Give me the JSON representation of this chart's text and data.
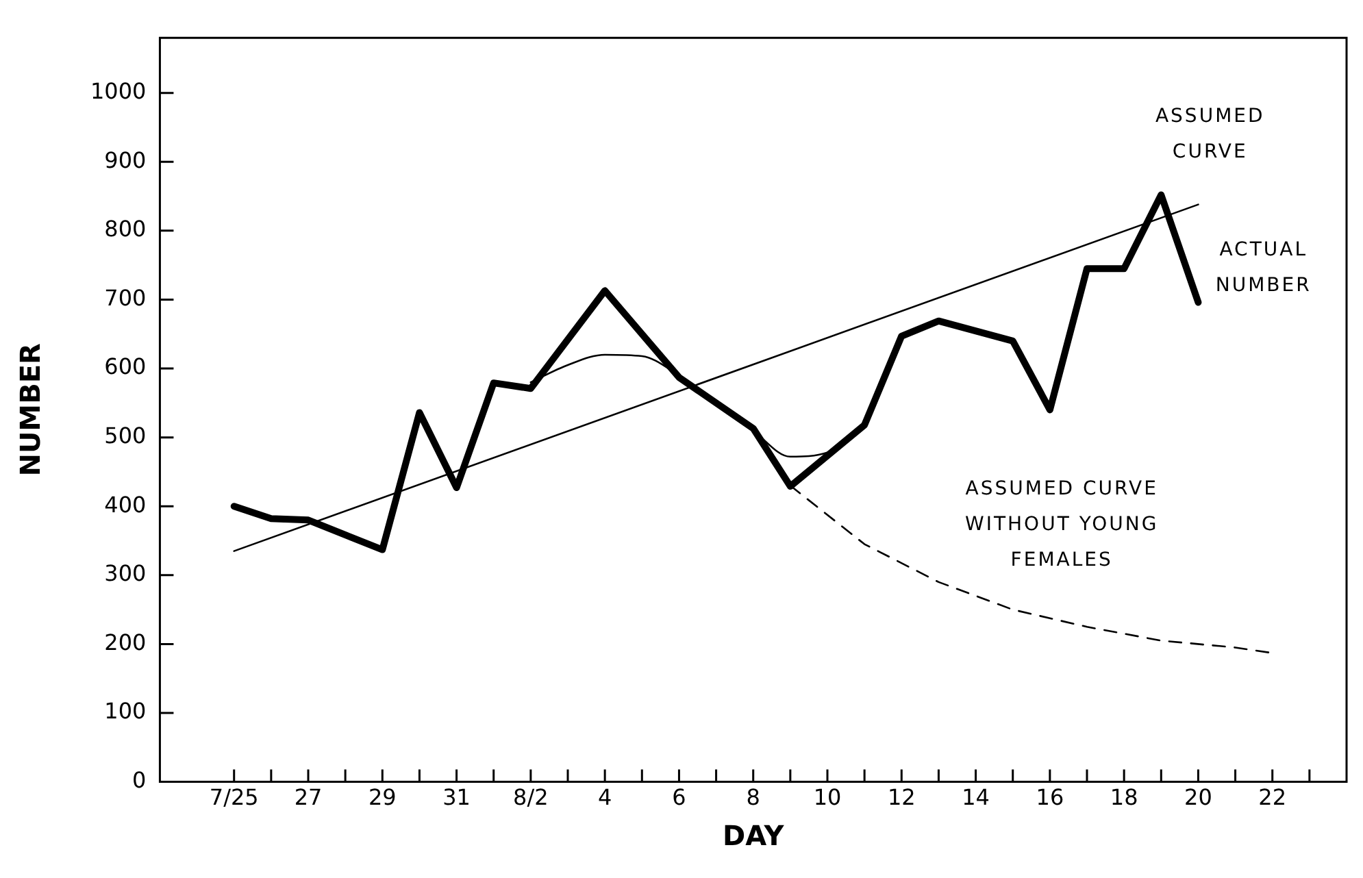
{
  "chart_data": {
    "type": "line",
    "xlabel": "DAY",
    "ylabel": "NUMBER",
    "xlim": [
      "--07-23",
      "--08-24"
    ],
    "ylim": [
      0,
      1080
    ],
    "xticks": [
      {
        "value": "--07-25",
        "label": "7/25"
      },
      {
        "value": "--07-26",
        "label": null
      },
      {
        "value": "--07-27",
        "label": "27"
      },
      {
        "value": "--07-28",
        "label": null
      },
      {
        "value": "--07-29",
        "label": "29"
      },
      {
        "value": "--07-30",
        "label": null
      },
      {
        "value": "--07-31",
        "label": "31"
      },
      {
        "value": "--08-01",
        "label": null
      },
      {
        "value": "--08-02",
        "label": "8/2"
      },
      {
        "value": "--08-03",
        "label": null
      },
      {
        "value": "--08-04",
        "label": "4"
      },
      {
        "value": "--08-05",
        "label": null
      },
      {
        "value": "--08-06",
        "label": "6"
      },
      {
        "value": "--08-07",
        "label": null
      },
      {
        "value": "--08-08",
        "label": "8"
      },
      {
        "value": "--08-09",
        "label": null
      },
      {
        "value": "--08-10",
        "label": "10"
      },
      {
        "value": "--08-11",
        "label": null
      },
      {
        "value": "--08-12",
        "label": "12"
      },
      {
        "value": "--08-13",
        "label": null
      },
      {
        "value": "--08-14",
        "label": "14"
      },
      {
        "value": "--08-15",
        "label": null
      },
      {
        "value": "--08-16",
        "label": "16"
      },
      {
        "value": "--08-17",
        "label": null
      },
      {
        "value": "--08-18",
        "label": "18"
      },
      {
        "value": "--08-19",
        "label": null
      },
      {
        "value": "--08-20",
        "label": "20"
      },
      {
        "value": "--08-21",
        "label": null
      },
      {
        "value": "--08-22",
        "label": "22"
      },
      {
        "value": "--08-23",
        "label": null
      }
    ],
    "yticks": [
      0,
      100,
      200,
      300,
      400,
      500,
      600,
      700,
      800,
      900,
      1000
    ],
    "grid": false,
    "legend": false,
    "marker": "none",
    "series": [
      {
        "color": "#000000",
        "x": [
          "--07-25",
          "--07-26",
          "--07-27",
          "--07-29",
          "--07-30",
          "--07-31",
          "--08-01",
          "--08-02",
          "--08-04",
          "--08-06",
          "--08-08",
          "--08-09",
          "--08-11",
          "--08-12",
          "--08-13",
          "--08-15",
          "--08-16",
          "--08-17",
          "--08-18",
          "--08-19",
          "--08-20"
        ],
        "values": [
          400,
          382,
          380,
          337,
          536,
          427,
          579,
          571,
          713,
          587,
          513,
          429,
          518,
          647,
          669,
          640,
          540,
          745,
          745,
          852,
          696
        ],
        "line_style": "solid"
      },
      {
        "color": "#000000",
        "x": [
          "--07-25",
          "--08-20"
        ],
        "values": [
          335,
          838
        ],
        "line_style": "solid"
      },
      {
        "color": "#000000",
        "x": [
          "--08-02",
          "--08-03",
          "--08-04",
          "--08-05",
          "--08-06",
          "--08-07",
          "--08-08",
          "--08-09",
          "--08-10",
          "--08-11"
        ],
        "values": [
          580,
          605,
          620,
          618,
          590,
          553,
          510,
          472,
          478,
          518
        ],
        "line_style": "solid"
      },
      {
        "color": "#000000",
        "x": [
          "--08-09",
          "--08-11",
          "--08-13",
          "--08-15",
          "--08-17",
          "--08-19",
          "--08-21",
          "--08-22"
        ],
        "values": [
          430,
          345,
          290,
          250,
          225,
          205,
          195,
          187
        ],
        "line_style": "dashed"
      }
    ],
    "annotations": [
      "ASSUMED\nCURVE",
      "ACTUAL\nNUMBER",
      "ASSUMED CURVE\nWITHOUT YOUNG\nFEMALES"
    ]
  }
}
